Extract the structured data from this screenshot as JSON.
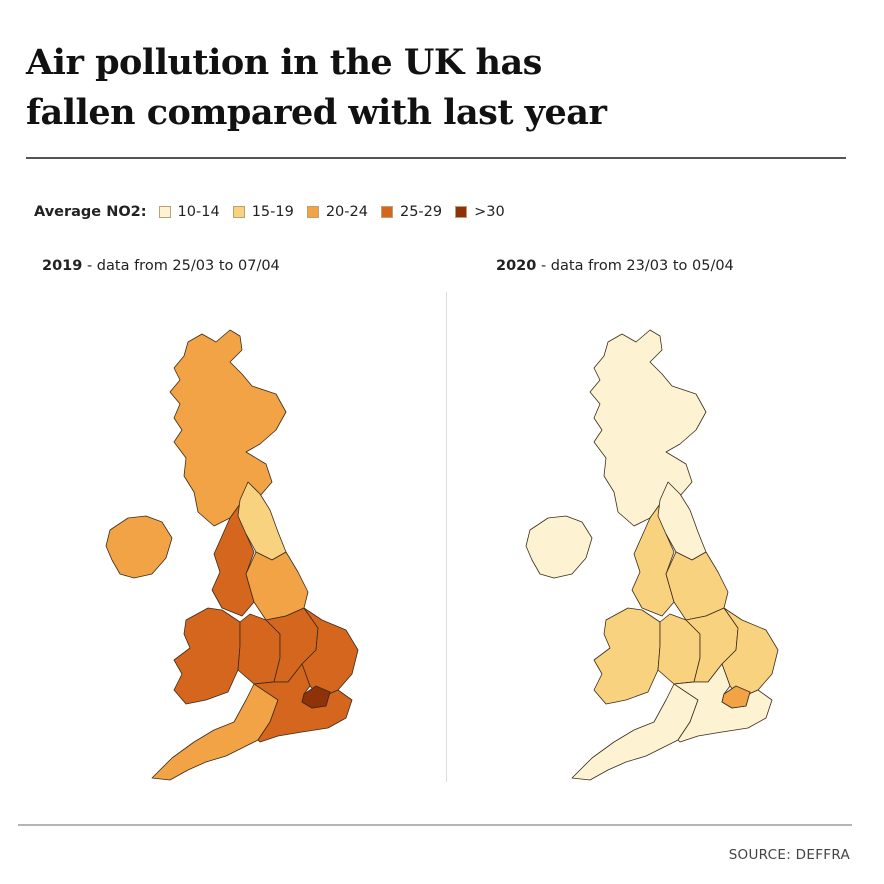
{
  "title": {
    "line1": "Air pollution in the UK has",
    "line2": "fallen compared with last year"
  },
  "legend": {
    "label": "Average NO2:",
    "items": [
      {
        "label": "10-14",
        "color": "#fdf3d3"
      },
      {
        "label": "15-19",
        "color": "#f9d27f"
      },
      {
        "label": "20-24",
        "color": "#f1a346"
      },
      {
        "label": "25-29",
        "color": "#d5661e"
      },
      {
        "label": ">30",
        "color": "#8f3209"
      }
    ]
  },
  "maps": [
    {
      "year": "2019",
      "subtitle": " - data from 25/03 to 07/04",
      "regions": {
        "scotland": "20-24",
        "northern_ireland": "20-24",
        "north_east": "15-19",
        "north_west": "25-29",
        "yorkshire": "20-24",
        "wales": "25-29",
        "west_midlands": "25-29",
        "east_midlands": "25-29",
        "east": "25-29",
        "london": ">30",
        "south_west": "20-24",
        "south_east": "25-29"
      }
    },
    {
      "year": "2020",
      "subtitle": " - data from 23/03 to 05/04",
      "regions": {
        "scotland": "10-14",
        "northern_ireland": "10-14",
        "north_east": "10-14",
        "north_west": "15-19",
        "yorkshire": "15-19",
        "wales": "15-19",
        "west_midlands": "15-19",
        "east_midlands": "15-19",
        "east": "15-19",
        "london": "20-24",
        "south_west": "10-14",
        "south_east": "10-14"
      }
    }
  ],
  "source": "SOURCE: DEFFRA"
}
